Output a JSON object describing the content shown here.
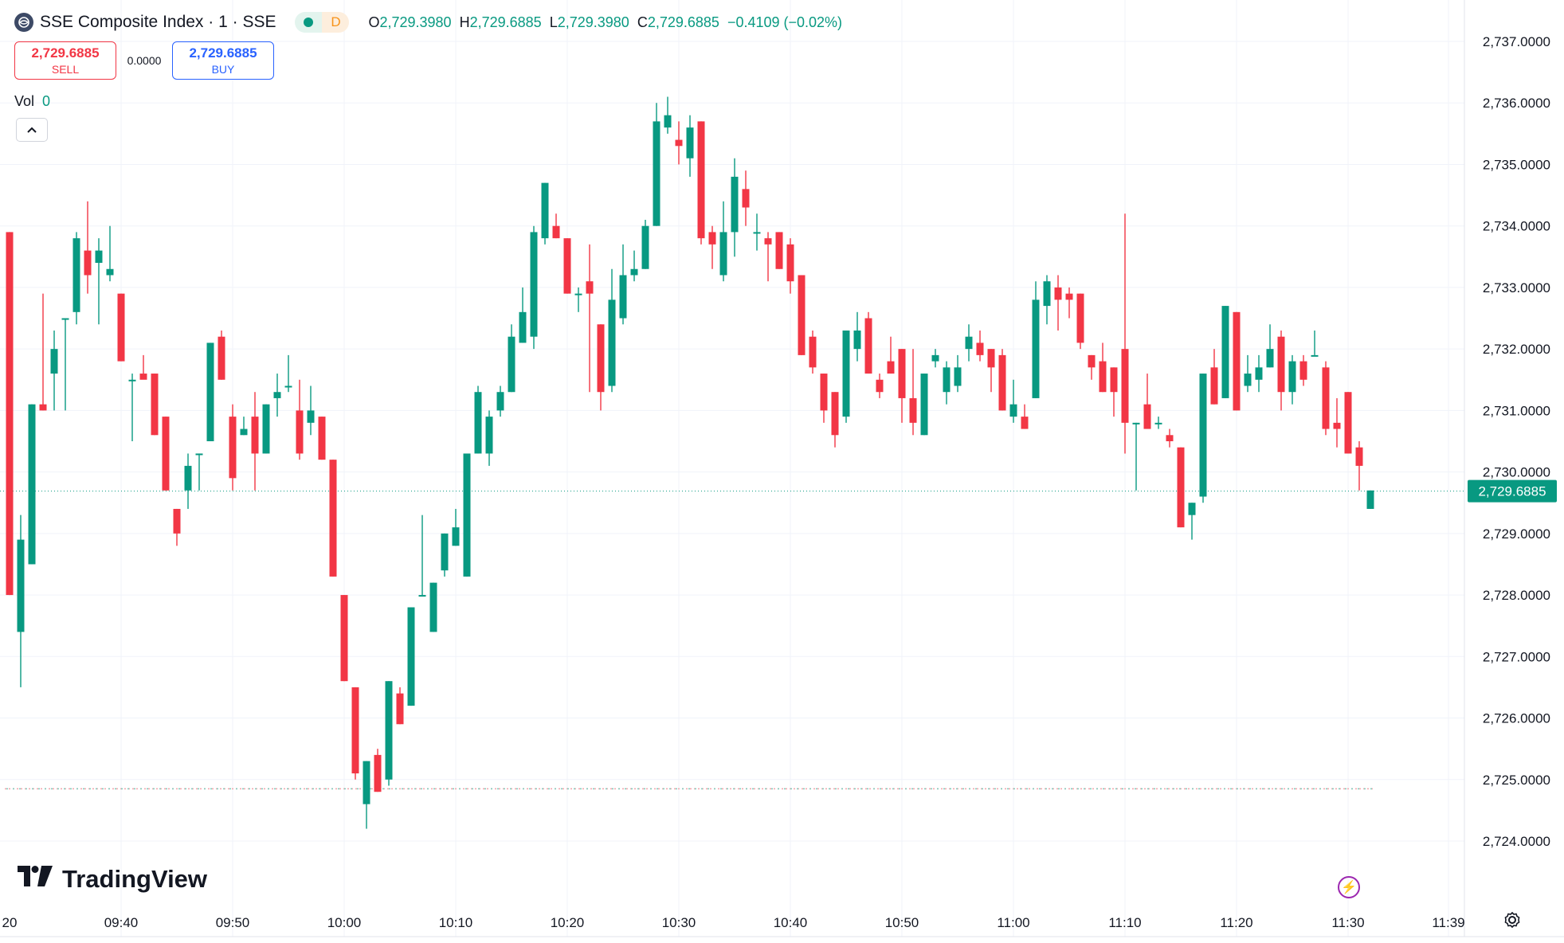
{
  "header": {
    "title": "SSE Composite Index · 1 · SSE",
    "interval_badge": "D",
    "ohlc": {
      "o_label": "O",
      "o": "2,729.3980",
      "h_label": "H",
      "h": "2,729.6885",
      "l_label": "L",
      "l": "2,729.3980",
      "c_label": "C",
      "c": "2,729.6885",
      "change": "−0.4109 (−0.02%)"
    }
  },
  "trade": {
    "sell_price": "2,729.6885",
    "sell_label": "SELL",
    "spread": "0.0000",
    "buy_price": "2,729.6885",
    "buy_label": "BUY"
  },
  "volume": {
    "label": "Vol",
    "value": "0"
  },
  "branding": {
    "logo_text": "TradingView"
  },
  "colors": {
    "up": "#089981",
    "down": "#f23645",
    "grid": "#f0f3fa",
    "text": "#131722"
  },
  "icons": [
    "globe-icon",
    "chevron-up-icon",
    "lightning-icon",
    "settings-icon"
  ],
  "chart_data": {
    "type": "candlestick",
    "title": "SSE Composite Index · 1 · SSE",
    "ylim": [
      2723.7,
      2737.3
    ],
    "y_ticks": [
      2724,
      2725,
      2726,
      2727,
      2728,
      2729,
      2730,
      2731,
      2732,
      2733,
      2734,
      2735,
      2736,
      2737
    ],
    "y_tick_labels": [
      "2,724.0000",
      "2,725.0000",
      "2,726.0000",
      "2,727.0000",
      "2,728.0000",
      "2,729.0000",
      "2,730.0000",
      "2,731.0000",
      "2,732.0000",
      "2,733.0000",
      "2,734.0000",
      "2,735.0000",
      "2,736.0000",
      "2,737.0000"
    ],
    "last_price": 2729.6885,
    "last_price_label": "2,729.6885",
    "reference_price": 2724.85,
    "x_tick_labels": [
      "20",
      "09:40",
      "09:50",
      "10:00",
      "10:10",
      "10:20",
      "10:30",
      "10:40",
      "10:50",
      "11:00",
      "11:10",
      "11:20",
      "11:30",
      "11:39"
    ],
    "x_tick_minutes": [
      20,
      40,
      50,
      60,
      70,
      80,
      90,
      100,
      110,
      120,
      130,
      140,
      150,
      159
    ],
    "first_minute": 30,
    "candles": [
      {
        "o": 2733.9,
        "h": 2733.9,
        "l": 2728.0,
        "c": 2728.0
      },
      {
        "o": 2727.4,
        "h": 2729.3,
        "l": 2726.5,
        "c": 2728.9
      },
      {
        "o": 2728.5,
        "h": 2731.1,
        "l": 2728.5,
        "c": 2731.1
      },
      {
        "o": 2731.1,
        "h": 2732.9,
        "l": 2731.0,
        "c": 2731.0
      },
      {
        "o": 2731.6,
        "h": 2732.3,
        "l": 2731.0,
        "c": 2732.0
      },
      {
        "o": 2732.5,
        "h": 2732.5,
        "l": 2731.0,
        "c": 2732.5
      },
      {
        "o": 2732.6,
        "h": 2733.9,
        "l": 2732.4,
        "c": 2733.8
      },
      {
        "o": 2733.6,
        "h": 2734.4,
        "l": 2732.9,
        "c": 2733.2
      },
      {
        "o": 2733.4,
        "h": 2733.8,
        "l": 2732.4,
        "c": 2733.6
      },
      {
        "o": 2733.2,
        "h": 2734.0,
        "l": 2733.1,
        "c": 2733.3
      },
      {
        "o": 2732.9,
        "h": 2732.9,
        "l": 2731.8,
        "c": 2731.8
      },
      {
        "o": 2731.5,
        "h": 2731.6,
        "l": 2730.5,
        "c": 2731.5
      },
      {
        "o": 2731.6,
        "h": 2731.9,
        "l": 2731.6,
        "c": 2731.5
      },
      {
        "o": 2731.6,
        "h": 2731.6,
        "l": 2730.6,
        "c": 2730.6
      },
      {
        "o": 2730.9,
        "h": 2730.9,
        "l": 2729.7,
        "c": 2729.7
      },
      {
        "o": 2729.4,
        "h": 2729.4,
        "l": 2728.8,
        "c": 2729.0
      },
      {
        "o": 2729.7,
        "h": 2730.3,
        "l": 2729.4,
        "c": 2730.1
      },
      {
        "o": 2730.3,
        "h": 2730.3,
        "l": 2729.7,
        "c": 2730.3
      },
      {
        "o": 2730.5,
        "h": 2732.1,
        "l": 2730.5,
        "c": 2732.1
      },
      {
        "o": 2732.2,
        "h": 2732.3,
        "l": 2731.5,
        "c": 2731.5
      },
      {
        "o": 2730.9,
        "h": 2731.1,
        "l": 2729.7,
        "c": 2729.9
      },
      {
        "o": 2730.6,
        "h": 2730.9,
        "l": 2730.6,
        "c": 2730.7
      },
      {
        "o": 2730.9,
        "h": 2731.3,
        "l": 2729.7,
        "c": 2730.3
      },
      {
        "o": 2730.3,
        "h": 2731.1,
        "l": 2730.3,
        "c": 2731.1
      },
      {
        "o": 2731.2,
        "h": 2731.6,
        "l": 2730.9,
        "c": 2731.3
      },
      {
        "o": 2731.4,
        "h": 2731.9,
        "l": 2731.3,
        "c": 2731.4
      },
      {
        "o": 2731.0,
        "h": 2731.5,
        "l": 2730.2,
        "c": 2730.3
      },
      {
        "o": 2730.8,
        "h": 2731.4,
        "l": 2730.6,
        "c": 2731.0
      },
      {
        "o": 2730.9,
        "h": 2730.9,
        "l": 2730.2,
        "c": 2730.2
      },
      {
        "o": 2730.2,
        "h": 2730.2,
        "l": 2728.3,
        "c": 2728.3
      },
      {
        "o": 2728.0,
        "h": 2728.0,
        "l": 2726.6,
        "c": 2726.6
      },
      {
        "o": 2726.5,
        "h": 2726.5,
        "l": 2725.0,
        "c": 2725.1
      },
      {
        "o": 2724.6,
        "h": 2725.3,
        "l": 2724.2,
        "c": 2725.3
      },
      {
        "o": 2725.4,
        "h": 2725.5,
        "l": 2724.8,
        "c": 2724.8
      },
      {
        "o": 2725.0,
        "h": 2726.6,
        "l": 2724.9,
        "c": 2726.6
      },
      {
        "o": 2726.4,
        "h": 2726.5,
        "l": 2725.9,
        "c": 2725.9
      },
      {
        "o": 2726.2,
        "h": 2727.8,
        "l": 2726.2,
        "c": 2727.8
      },
      {
        "o": 2728.0,
        "h": 2729.3,
        "l": 2728.0,
        "c": 2728.0
      },
      {
        "o": 2727.4,
        "h": 2728.2,
        "l": 2727.4,
        "c": 2728.2
      },
      {
        "o": 2728.4,
        "h": 2729.0,
        "l": 2728.3,
        "c": 2729.0
      },
      {
        "o": 2728.8,
        "h": 2729.4,
        "l": 2728.8,
        "c": 2729.1
      },
      {
        "o": 2728.3,
        "h": 2730.3,
        "l": 2728.3,
        "c": 2730.3
      },
      {
        "o": 2730.3,
        "h": 2731.4,
        "l": 2730.3,
        "c": 2731.3
      },
      {
        "o": 2730.3,
        "h": 2731.0,
        "l": 2730.1,
        "c": 2730.9
      },
      {
        "o": 2731.0,
        "h": 2731.4,
        "l": 2730.9,
        "c": 2731.3
      },
      {
        "o": 2731.3,
        "h": 2732.4,
        "l": 2731.3,
        "c": 2732.2
      },
      {
        "o": 2732.1,
        "h": 2733.0,
        "l": 2732.1,
        "c": 2732.6
      },
      {
        "o": 2732.2,
        "h": 2734.0,
        "l": 2732.0,
        "c": 2733.9
      },
      {
        "o": 2733.8,
        "h": 2734.7,
        "l": 2733.7,
        "c": 2734.7
      },
      {
        "o": 2734.0,
        "h": 2734.2,
        "l": 2733.8,
        "c": 2733.8
      },
      {
        "o": 2733.8,
        "h": 2733.8,
        "l": 2732.9,
        "c": 2732.9
      },
      {
        "o": 2732.9,
        "h": 2733.0,
        "l": 2732.6,
        "c": 2732.9
      },
      {
        "o": 2733.1,
        "h": 2733.7,
        "l": 2731.3,
        "c": 2732.9
      },
      {
        "o": 2732.4,
        "h": 2732.4,
        "l": 2731.0,
        "c": 2731.3
      },
      {
        "o": 2731.4,
        "h": 2733.3,
        "l": 2731.3,
        "c": 2732.8
      },
      {
        "o": 2732.5,
        "h": 2733.7,
        "l": 2732.4,
        "c": 2733.2
      },
      {
        "o": 2733.2,
        "h": 2733.6,
        "l": 2733.1,
        "c": 2733.3
      },
      {
        "o": 2733.3,
        "h": 2734.1,
        "l": 2733.3,
        "c": 2734.0
      },
      {
        "o": 2734.0,
        "h": 2736.0,
        "l": 2734.0,
        "c": 2735.7
      },
      {
        "o": 2735.6,
        "h": 2736.1,
        "l": 2735.5,
        "c": 2735.8
      },
      {
        "o": 2735.4,
        "h": 2735.7,
        "l": 2735.0,
        "c": 2735.3
      },
      {
        "o": 2735.1,
        "h": 2735.8,
        "l": 2734.8,
        "c": 2735.6
      },
      {
        "o": 2735.7,
        "h": 2735.7,
        "l": 2733.7,
        "c": 2733.8
      },
      {
        "o": 2733.9,
        "h": 2734.0,
        "l": 2733.3,
        "c": 2733.7
      },
      {
        "o": 2733.2,
        "h": 2734.4,
        "l": 2733.1,
        "c": 2733.9
      },
      {
        "o": 2733.9,
        "h": 2735.1,
        "l": 2733.5,
        "c": 2734.8
      },
      {
        "o": 2734.6,
        "h": 2734.9,
        "l": 2734.0,
        "c": 2734.3
      },
      {
        "o": 2733.9,
        "h": 2734.2,
        "l": 2733.6,
        "c": 2733.9
      },
      {
        "o": 2733.8,
        "h": 2733.9,
        "l": 2733.1,
        "c": 2733.7
      },
      {
        "o": 2733.9,
        "h": 2733.9,
        "l": 2733.3,
        "c": 2733.3
      },
      {
        "o": 2733.7,
        "h": 2733.8,
        "l": 2732.9,
        "c": 2733.1
      },
      {
        "o": 2733.2,
        "h": 2733.2,
        "l": 2731.9,
        "c": 2731.9
      },
      {
        "o": 2732.2,
        "h": 2732.3,
        "l": 2731.6,
        "c": 2731.7
      },
      {
        "o": 2731.6,
        "h": 2731.6,
        "l": 2730.8,
        "c": 2731.0
      },
      {
        "o": 2731.3,
        "h": 2731.3,
        "l": 2730.4,
        "c": 2730.6
      },
      {
        "o": 2730.9,
        "h": 2732.3,
        "l": 2730.8,
        "c": 2732.3
      },
      {
        "o": 2732.0,
        "h": 2732.6,
        "l": 2731.8,
        "c": 2732.3
      },
      {
        "o": 2732.5,
        "h": 2732.6,
        "l": 2731.6,
        "c": 2731.6
      },
      {
        "o": 2731.5,
        "h": 2731.6,
        "l": 2731.2,
        "c": 2731.3
      },
      {
        "o": 2731.8,
        "h": 2732.2,
        "l": 2731.6,
        "c": 2731.6
      },
      {
        "o": 2732.0,
        "h": 2732.0,
        "l": 2730.8,
        "c": 2731.2
      },
      {
        "o": 2731.2,
        "h": 2732.0,
        "l": 2730.6,
        "c": 2730.8
      },
      {
        "o": 2730.6,
        "h": 2731.6,
        "l": 2730.6,
        "c": 2731.6
      },
      {
        "o": 2731.8,
        "h": 2732.0,
        "l": 2731.7,
        "c": 2731.9
      },
      {
        "o": 2731.3,
        "h": 2731.8,
        "l": 2731.1,
        "c": 2731.7
      },
      {
        "o": 2731.4,
        "h": 2731.9,
        "l": 2731.3,
        "c": 2731.7
      },
      {
        "o": 2732.0,
        "h": 2732.4,
        "l": 2731.8,
        "c": 2732.2
      },
      {
        "o": 2732.1,
        "h": 2732.3,
        "l": 2731.8,
        "c": 2731.9
      },
      {
        "o": 2732.0,
        "h": 2732.0,
        "l": 2731.3,
        "c": 2731.7
      },
      {
        "o": 2731.9,
        "h": 2732.0,
        "l": 2731.0,
        "c": 2731.0
      },
      {
        "o": 2730.9,
        "h": 2731.5,
        "l": 2730.8,
        "c": 2731.1
      },
      {
        "o": 2730.9,
        "h": 2731.1,
        "l": 2730.7,
        "c": 2730.7
      },
      {
        "o": 2731.2,
        "h": 2733.1,
        "l": 2731.2,
        "c": 2732.8
      },
      {
        "o": 2732.7,
        "h": 2733.2,
        "l": 2732.4,
        "c": 2733.1
      },
      {
        "o": 2733.0,
        "h": 2733.2,
        "l": 2732.3,
        "c": 2732.8
      },
      {
        "o": 2732.9,
        "h": 2733.0,
        "l": 2732.5,
        "c": 2732.8
      },
      {
        "o": 2732.9,
        "h": 2732.9,
        "l": 2732.0,
        "c": 2732.1
      },
      {
        "o": 2731.9,
        "h": 2731.9,
        "l": 2731.5,
        "c": 2731.7
      },
      {
        "o": 2731.8,
        "h": 2732.1,
        "l": 2731.3,
        "c": 2731.3
      },
      {
        "o": 2731.7,
        "h": 2731.7,
        "l": 2730.9,
        "c": 2731.3
      },
      {
        "o": 2732.0,
        "h": 2734.2,
        "l": 2730.3,
        "c": 2730.8
      },
      {
        "o": 2730.8,
        "h": 2730.8,
        "l": 2729.7,
        "c": 2730.8
      },
      {
        "o": 2731.1,
        "h": 2731.6,
        "l": 2730.8,
        "c": 2730.7
      },
      {
        "o": 2730.8,
        "h": 2730.9,
        "l": 2730.7,
        "c": 2730.8
      },
      {
        "o": 2730.6,
        "h": 2730.7,
        "l": 2730.4,
        "c": 2730.5
      },
      {
        "o": 2730.4,
        "h": 2730.4,
        "l": 2729.1,
        "c": 2729.1
      },
      {
        "o": 2729.3,
        "h": 2729.5,
        "l": 2728.9,
        "c": 2729.5
      },
      {
        "o": 2729.6,
        "h": 2731.6,
        "l": 2729.5,
        "c": 2731.6
      },
      {
        "o": 2731.7,
        "h": 2732.0,
        "l": 2731.1,
        "c": 2731.1
      },
      {
        "o": 2731.2,
        "h": 2732.7,
        "l": 2731.2,
        "c": 2732.7
      },
      {
        "o": 2732.6,
        "h": 2732.6,
        "l": 2731.0,
        "c": 2731.0
      },
      {
        "o": 2731.4,
        "h": 2731.9,
        "l": 2731.3,
        "c": 2731.6
      },
      {
        "o": 2731.5,
        "h": 2731.9,
        "l": 2731.3,
        "c": 2731.7
      },
      {
        "o": 2731.7,
        "h": 2732.4,
        "l": 2731.7,
        "c": 2732.0
      },
      {
        "o": 2732.2,
        "h": 2732.3,
        "l": 2731.0,
        "c": 2731.3
      },
      {
        "o": 2731.3,
        "h": 2731.9,
        "l": 2731.1,
        "c": 2731.8
      },
      {
        "o": 2731.8,
        "h": 2731.9,
        "l": 2731.4,
        "c": 2731.5
      },
      {
        "o": 2731.9,
        "h": 2732.3,
        "l": 2731.9,
        "c": 2731.9
      },
      {
        "o": 2731.7,
        "h": 2731.8,
        "l": 2730.6,
        "c": 2730.7
      },
      {
        "o": 2730.8,
        "h": 2731.2,
        "l": 2730.4,
        "c": 2730.7
      },
      {
        "o": 2731.3,
        "h": 2731.3,
        "l": 2730.3,
        "c": 2730.3
      },
      {
        "o": 2730.4,
        "h": 2730.5,
        "l": 2729.7,
        "c": 2730.1
      },
      {
        "o": 2729.4,
        "h": 2729.7,
        "l": 2729.4,
        "c": 2729.7
      }
    ]
  }
}
